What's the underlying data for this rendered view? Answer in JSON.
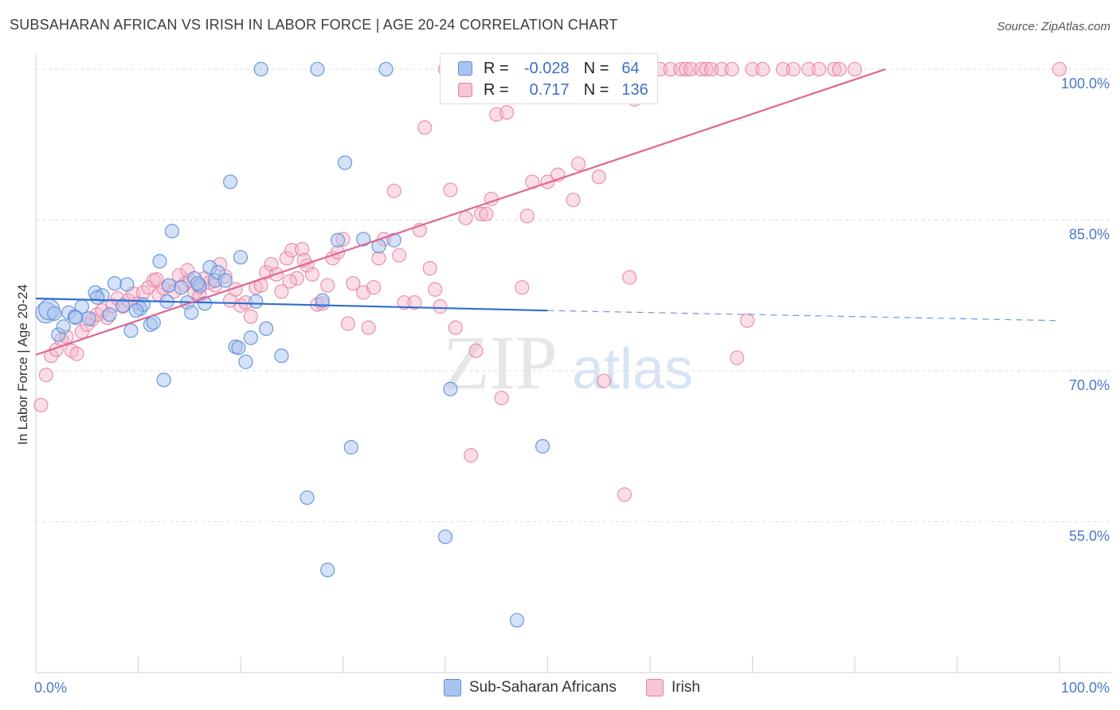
{
  "title": "SUBSAHARAN AFRICAN VS IRISH IN LABOR FORCE | AGE 20-24 CORRELATION CHART",
  "source": "Source: ZipAtlas.com",
  "watermark": {
    "zip": "ZIP",
    "atlas": "atlas"
  },
  "legend": {
    "rows": [
      {
        "r_label": "R =",
        "r_value": "-0.028",
        "n_label": "N =",
        "n_value": "64"
      },
      {
        "r_label": "R =",
        "r_value": "0.717",
        "n_label": "N =",
        "n_value": "136"
      }
    ]
  },
  "colors": {
    "blue_fill": "#a9c4ee",
    "blue_stroke": "#5b8fd9",
    "blue_line": "#2f6fd0",
    "pink_fill": "#f5b6c9",
    "pink_stroke": "#e87fa3",
    "pink_line": "#e26592",
    "grid": "#dedede",
    "tick_text": "#4a78c8"
  },
  "chart_data": {
    "type": "scatter",
    "title": "SUBSAHARAN AFRICAN VS IRISH IN LABOR FORCE | AGE 20-24 CORRELATION CHART",
    "xlabel": "",
    "ylabel": "In Labor Force | Age 20-24",
    "xlim": [
      0,
      100
    ],
    "ylim": [
      40,
      101.5
    ],
    "x_tick_labels": [
      "0.0%",
      "100.0%"
    ],
    "y_ticks": [
      55,
      70,
      85,
      100
    ],
    "y_tick_labels": [
      "55.0%",
      "70.0%",
      "85.0%",
      "100.0%"
    ],
    "grid": true,
    "legend_placement": "top-center",
    "series": [
      {
        "name": "Sub-Saharan Africans",
        "r": -0.028,
        "n": 64,
        "trend": {
          "x0": 0,
          "y0": 77.2,
          "x1": 50,
          "y1": 76.0,
          "dashed_to_x": 100,
          "dashed_to_y": 75.0
        },
        "points": [
          [
            1.0,
            75.8
          ],
          [
            1.3,
            76.1
          ],
          [
            1.8,
            75.7
          ],
          [
            2.2,
            73.6
          ],
          [
            2.7,
            74.4
          ],
          [
            3.2,
            75.8
          ],
          [
            3.8,
            75.4
          ],
          [
            4.5,
            76.4
          ],
          [
            5.2,
            75.2
          ],
          [
            5.8,
            77.8
          ],
          [
            6.5,
            77.5
          ],
          [
            7.2,
            75.6
          ],
          [
            7.7,
            78.7
          ],
          [
            8.5,
            76.5
          ],
          [
            8.9,
            78.6
          ],
          [
            9.3,
            74.0
          ],
          [
            10.2,
            76.2
          ],
          [
            10.5,
            76.6
          ],
          [
            11.2,
            74.6
          ],
          [
            11.5,
            74.8
          ],
          [
            12.1,
            80.9
          ],
          [
            12.5,
            69.1
          ],
          [
            13.0,
            78.5
          ],
          [
            13.3,
            83.9
          ],
          [
            14.2,
            78.3
          ],
          [
            14.8,
            76.8
          ],
          [
            15.2,
            75.8
          ],
          [
            15.5,
            79.2
          ],
          [
            16.0,
            78.5
          ],
          [
            16.5,
            76.7
          ],
          [
            17.0,
            80.3
          ],
          [
            17.5,
            79.0
          ],
          [
            17.8,
            79.8
          ],
          [
            18.5,
            79.0
          ],
          [
            19.0,
            88.8
          ],
          [
            19.5,
            72.4
          ],
          [
            20.0,
            81.3
          ],
          [
            20.5,
            70.9
          ],
          [
            19.8,
            72.3
          ],
          [
            21.0,
            73.3
          ],
          [
            21.5,
            76.9
          ],
          [
            22.0,
            100.0
          ],
          [
            22.5,
            74.2
          ],
          [
            24.0,
            71.5
          ],
          [
            26.5,
            57.4
          ],
          [
            27.5,
            100.0
          ],
          [
            28.0,
            77.0
          ],
          [
            28.5,
            50.2
          ],
          [
            29.5,
            83.0
          ],
          [
            30.2,
            90.7
          ],
          [
            30.8,
            62.4
          ],
          [
            32.0,
            83.1
          ],
          [
            33.5,
            82.4
          ],
          [
            34.2,
            100.0
          ],
          [
            35.0,
            83.0
          ],
          [
            40.0,
            53.5
          ],
          [
            40.5,
            68.2
          ],
          [
            47.0,
            45.2
          ],
          [
            49.5,
            62.5
          ],
          [
            15.8,
            78.7
          ],
          [
            3.9,
            75.3
          ],
          [
            12.8,
            76.9
          ],
          [
            6.0,
            77.3
          ],
          [
            9.8,
            76.0
          ]
        ]
      },
      {
        "name": "Irish",
        "r": 0.717,
        "n": 136,
        "trend": {
          "x0": 0,
          "y0": 71.6,
          "x1": 83,
          "y1": 100.0
        },
        "points": [
          [
            0.5,
            66.6
          ],
          [
            1.0,
            69.6
          ],
          [
            1.5,
            71.5
          ],
          [
            2.0,
            72.1
          ],
          [
            2.5,
            73.1
          ],
          [
            3.0,
            73.4
          ],
          [
            3.5,
            72.0
          ],
          [
            4.0,
            71.7
          ],
          [
            4.5,
            73.9
          ],
          [
            5.0,
            74.6
          ],
          [
            5.5,
            75.1
          ],
          [
            6.0,
            75.6
          ],
          [
            6.5,
            76.0
          ],
          [
            7.0,
            75.3
          ],
          [
            7.5,
            76.5
          ],
          [
            8.0,
            77.2
          ],
          [
            8.5,
            76.4
          ],
          [
            9.0,
            77.0
          ],
          [
            9.5,
            77.7
          ],
          [
            10.0,
            76.7
          ],
          [
            10.5,
            77.8
          ],
          [
            11.0,
            78.3
          ],
          [
            11.5,
            79.0
          ],
          [
            12.0,
            77.6
          ],
          [
            12.5,
            78.2
          ],
          [
            13.0,
            78.5
          ],
          [
            13.5,
            77.9
          ],
          [
            14.0,
            79.5
          ],
          [
            14.5,
            78.6
          ],
          [
            15.0,
            79.0
          ],
          [
            15.5,
            77.8
          ],
          [
            16.0,
            78.3
          ],
          [
            16.5,
            79.2
          ],
          [
            17.0,
            78.8
          ],
          [
            17.5,
            78.5
          ],
          [
            18.0,
            80.6
          ],
          [
            18.5,
            79.4
          ],
          [
            19.0,
            77.0
          ],
          [
            19.5,
            78.1
          ],
          [
            20.0,
            76.5
          ],
          [
            20.5,
            76.8
          ],
          [
            21.0,
            75.4
          ],
          [
            21.5,
            78.3
          ],
          [
            22.0,
            78.5
          ],
          [
            22.5,
            79.8
          ],
          [
            23.0,
            80.6
          ],
          [
            23.5,
            79.6
          ],
          [
            24.0,
            77.9
          ],
          [
            24.5,
            81.2
          ],
          [
            25.0,
            82.0
          ],
          [
            25.5,
            79.2
          ],
          [
            26.0,
            82.1
          ],
          [
            26.5,
            80.5
          ],
          [
            27.0,
            79.6
          ],
          [
            27.5,
            76.6
          ],
          [
            28.0,
            76.7
          ],
          [
            28.5,
            78.5
          ],
          [
            29.0,
            81.2
          ],
          [
            29.5,
            81.8
          ],
          [
            30.0,
            83.1
          ],
          [
            30.5,
            74.7
          ],
          [
            31.0,
            78.7
          ],
          [
            32.0,
            77.8
          ],
          [
            32.5,
            74.3
          ],
          [
            33.0,
            78.3
          ],
          [
            33.5,
            81.2
          ],
          [
            34.0,
            83.1
          ],
          [
            35.0,
            87.9
          ],
          [
            35.5,
            81.5
          ],
          [
            36.0,
            76.8
          ],
          [
            37.0,
            76.8
          ],
          [
            37.5,
            84.0
          ],
          [
            38.0,
            94.2
          ],
          [
            38.5,
            80.2
          ],
          [
            39.0,
            78.1
          ],
          [
            39.5,
            76.4
          ],
          [
            40.0,
            100.0
          ],
          [
            40.5,
            88.0
          ],
          [
            41.0,
            74.3
          ],
          [
            42.0,
            85.2
          ],
          [
            42.5,
            61.6
          ],
          [
            43.0,
            72.0
          ],
          [
            43.5,
            85.6
          ],
          [
            44.0,
            85.6
          ],
          [
            44.5,
            87.1
          ],
          [
            45.0,
            95.5
          ],
          [
            45.5,
            67.3
          ],
          [
            46.0,
            95.7
          ],
          [
            46.5,
            100.0
          ],
          [
            47.0,
            100.0
          ],
          [
            47.5,
            78.3
          ],
          [
            48.0,
            85.4
          ],
          [
            48.5,
            88.8
          ],
          [
            49.0,
            100.0
          ],
          [
            50.0,
            88.8
          ],
          [
            51.0,
            89.5
          ],
          [
            52.0,
            100.0
          ],
          [
            52.5,
            87.0
          ],
          [
            53.0,
            90.6
          ],
          [
            54.0,
            100.0
          ],
          [
            55.0,
            89.3
          ],
          [
            55.5,
            69.0
          ],
          [
            56.0,
            100.0
          ],
          [
            57.0,
            100.0
          ],
          [
            57.5,
            57.7
          ],
          [
            58.0,
            79.3
          ],
          [
            58.5,
            97.0
          ],
          [
            59.0,
            100.0
          ],
          [
            60.0,
            100.0
          ],
          [
            61.0,
            100.0
          ],
          [
            62.0,
            100.0
          ],
          [
            63.0,
            100.0
          ],
          [
            63.5,
            100.0
          ],
          [
            64.0,
            100.0
          ],
          [
            65.0,
            100.0
          ],
          [
            65.5,
            100.0
          ],
          [
            66.0,
            100.0
          ],
          [
            67.0,
            100.0
          ],
          [
            68.0,
            100.0
          ],
          [
            68.5,
            71.3
          ],
          [
            69.5,
            75.0
          ],
          [
            70.0,
            100.0
          ],
          [
            71.0,
            100.0
          ],
          [
            73.0,
            100.0
          ],
          [
            74.0,
            100.0
          ],
          [
            75.5,
            100.0
          ],
          [
            76.5,
            100.0
          ],
          [
            78.0,
            100.0
          ],
          [
            78.5,
            100.0
          ],
          [
            80.0,
            100.0
          ],
          [
            100.0,
            100.0
          ],
          [
            16.0,
            77.5
          ],
          [
            24.8,
            78.9
          ],
          [
            26.2,
            81.0
          ],
          [
            11.8,
            79.1
          ],
          [
            14.8,
            80.0
          ]
        ]
      }
    ]
  }
}
